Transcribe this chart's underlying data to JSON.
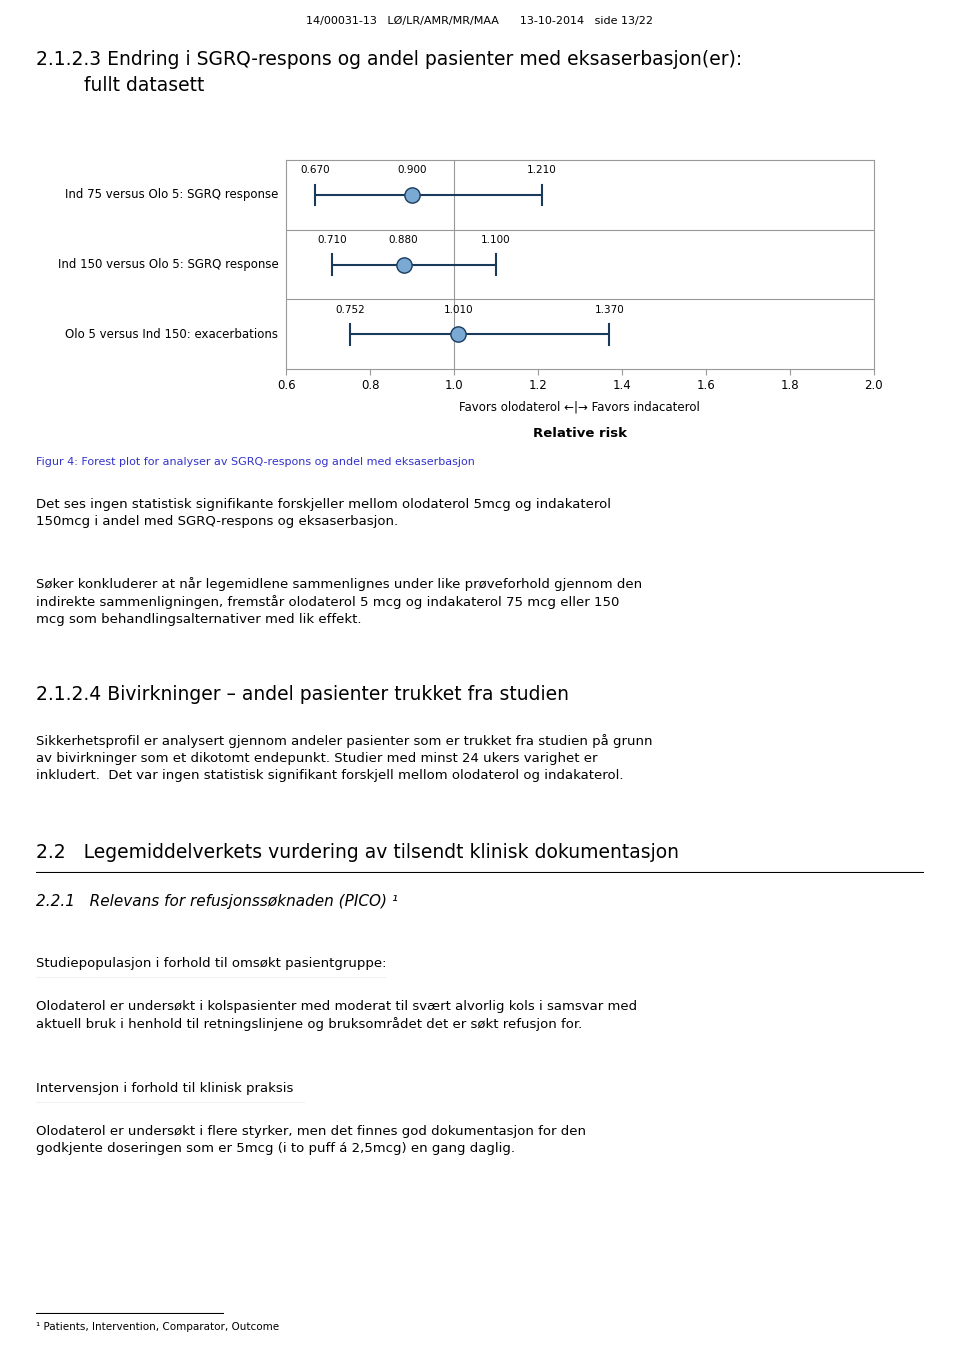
{
  "header": "14/00031-13   LØ/LR/AMR/MR/MAA      13-10-2014   side 13/22",
  "section_title_line1": "2.1.2.3 Endring i SGRQ-respons og andel pasienter med eksaserbasjon(er):",
  "section_title_line2": "        fullt datasett",
  "forest_rows": [
    {
      "label": "Ind 75 versus Olo 5: SGRQ response",
      "ci_low": 0.67,
      "estimate": 0.9,
      "ci_high": 1.21
    },
    {
      "label": "Ind 150 versus Olo 5: SGRQ response",
      "ci_low": 0.71,
      "estimate": 0.88,
      "ci_high": 1.1
    },
    {
      "label": "Olo 5 versus Ind 150: exacerbations",
      "ci_low": 0.752,
      "estimate": 1.01,
      "ci_high": 1.37
    }
  ],
  "x_min": 0.6,
  "x_max": 2.0,
  "x_ticks": [
    0.6,
    0.8,
    1.0,
    1.2,
    1.4,
    1.6,
    1.8,
    2.0
  ],
  "x_label_arrow": "Favors olodaterol ←|→ Favors indacaterol",
  "x_label_bold": "Relative risk",
  "figure_caption": "Figur 4: Forest plot for analyser av SGRQ-respons og andel med eksaserbasjon",
  "para1": "Det ses ingen statistisk signifikante forskjeller mellom olodaterol 5mcg og indakaterol\n150mcg i andel med SGRQ-respons og eksaserbasjon.",
  "para2": "Søker konkluderer at når legemidlene sammenlignes under like prøveforhold gjennom den\nindirekte sammenligningen, fremstår olodaterol 5 mcg og indakaterol 75 mcg eller 150\nmcg som behandlingsalternativer med lik effekt.",
  "section2_title": "2.1.2.4 Bivirkninger – andel pasienter trukket fra studien",
  "para3": "Sikkerhetsprofil er analysert gjennom andeler pasienter som er trukket fra studien på grunn\nav bivirkninger som et dikotomt endepunkt. Studier med minst 24 ukers varighet er\ninkludert.  Det var ingen statistisk signifikant forskjell mellom olodaterol og indakaterol.",
  "section3_title": "2.2   Legemiddelverkets vurdering av tilsendt klinisk dokumentasjon",
  "section4_title": "2.2.1   Relevans for refusjonssøknaden (PICO) ¹",
  "underline1": "Studiepopulasjon i forhold til omsøkt pasientgruppe:",
  "para4": "Olodaterol er undersøkt i kolspasienter med moderat til svært alvorlig kols i samsvar med\naktuell bruk i henhold til retningslinjene og bruksområdet det er søkt refusjon for.",
  "underline2": "Intervensjon i forhold til klinisk praksis",
  "para5": "Olodaterol er undersøkt i flere styrker, men det finnes god dokumentasjon for den\ngodkjente doseringen som er 5mcg (i to puff á 2,5mcg) en gang daglig.",
  "footnote": "¹ Patients, Intervention, Comparator, Outcome",
  "forest_marker_color": "#7aaad4",
  "forest_line_color": "#1a3a5c",
  "forest_grid_color": "#999999",
  "caption_color": "#3333cc",
  "bg_color": "#ffffff"
}
